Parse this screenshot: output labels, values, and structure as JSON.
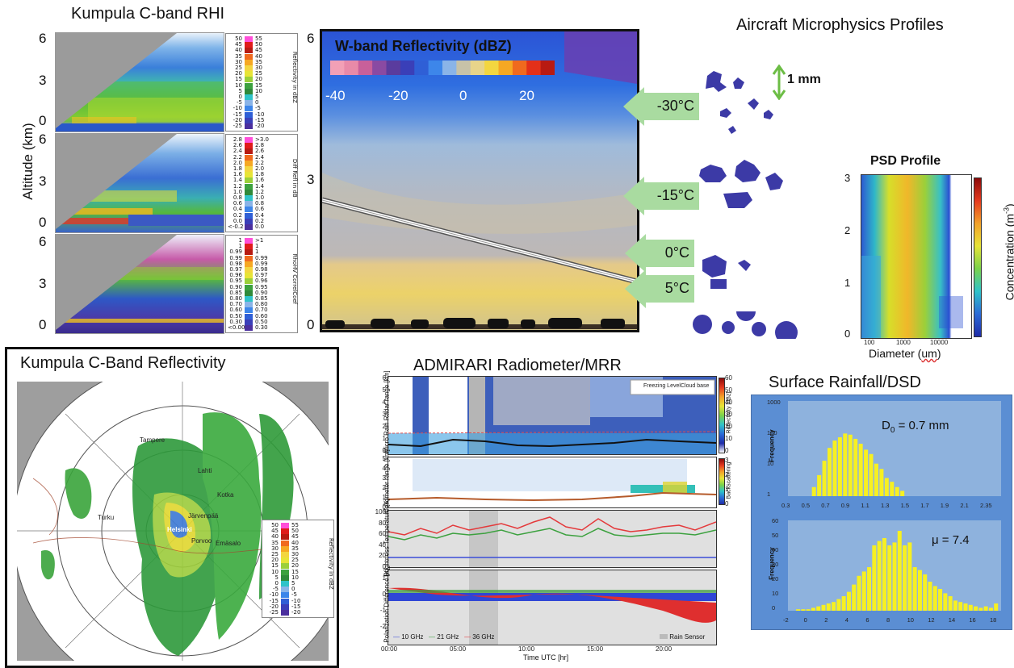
{
  "rhi": {
    "title": "Kumpula C-band RHI",
    "y_axis_label": "Altitude (km)",
    "left_ticks": [
      "6",
      "3",
      "0"
    ],
    "right_ticks": [
      "6",
      "3",
      "0"
    ],
    "legend1_label": "Reflectivity in dBZ",
    "legend1": [
      [
        "50",
        "55"
      ],
      [
        "45",
        "50"
      ],
      [
        "40",
        "45"
      ],
      [
        "35",
        "40"
      ],
      [
        "30",
        "35"
      ],
      [
        "25",
        "30"
      ],
      [
        "20",
        "25"
      ],
      [
        "15",
        "20"
      ],
      [
        "10",
        "15"
      ],
      [
        "5",
        "10"
      ],
      [
        "0",
        "5"
      ],
      [
        "-5",
        "0"
      ],
      [
        "-10",
        "-5"
      ],
      [
        "-15",
        "-10"
      ],
      [
        "-20",
        "-15"
      ],
      [
        "-25",
        "-20"
      ]
    ],
    "legend2_label": "Diff Refl in dB",
    "legend2": [
      [
        "2.8",
        ">3.0"
      ],
      [
        "2.6",
        "2.8"
      ],
      [
        "2.4",
        "2.6"
      ],
      [
        "2.2",
        "2.4"
      ],
      [
        "2.0",
        "2.2"
      ],
      [
        "1.8",
        "2.0"
      ],
      [
        "1.6",
        "1.8"
      ],
      [
        "1.4",
        "1.6"
      ],
      [
        "1.2",
        "1.4"
      ],
      [
        "1.0",
        "1.2"
      ],
      [
        "0.8",
        "1.0"
      ],
      [
        "0.6",
        "0.8"
      ],
      [
        "0.4",
        "0.6"
      ],
      [
        "0.2",
        "0.4"
      ],
      [
        "0.0",
        "0.2"
      ],
      [
        "<-0.2",
        "0.0"
      ]
    ],
    "legend3_label": "RhoHV CorrelCoef",
    "legend3": [
      [
        "1",
        ">1"
      ],
      [
        "1",
        "1"
      ],
      [
        "0.99",
        "1"
      ],
      [
        "0.99",
        "0.99"
      ],
      [
        "0.98",
        "0.99"
      ],
      [
        "0.97",
        "0.98"
      ],
      [
        "0.96",
        "0.97"
      ],
      [
        "0.95",
        "0.96"
      ],
      [
        "0.90",
        "0.95"
      ],
      [
        "0.85",
        "0.90"
      ],
      [
        "0.80",
        "0.85"
      ],
      [
        "0.70",
        "0.80"
      ],
      [
        "0.60",
        "0.70"
      ],
      [
        "0.50",
        "0.60"
      ],
      [
        "0.30",
        "0.50"
      ],
      [
        "<0.00",
        "0.30"
      ]
    ]
  },
  "wband": {
    "title": "W-band Reflectivity (dBZ)",
    "colorbar_ticks": [
      "-40",
      "-20",
      "0",
      "20"
    ],
    "right_ticks": [
      "6",
      "3",
      "0"
    ],
    "colors": [
      "#f2a0b6",
      "#e88aa8",
      "#c8609a",
      "#8a4aa2",
      "#5a3c9e",
      "#3a3fb8",
      "#2f5fd6",
      "#3d86ea",
      "#8ab4e8",
      "#c7c2a8",
      "#e7d48a",
      "#f3d640",
      "#f6a823",
      "#f06a1e",
      "#e33019",
      "#b81a12"
    ]
  },
  "temperature_arrows": [
    "-30°C",
    "-15°C",
    "0°C",
    "5°C"
  ],
  "microphysics": {
    "title": "Aircraft Microphysics Profiles",
    "scale_label": "1 mm"
  },
  "psd": {
    "title": "PSD Profile",
    "y_ticks": [
      "3",
      "2",
      "1",
      "0"
    ],
    "x_ticks": [
      "100",
      "1000",
      "10000"
    ],
    "x_label_prefix": "Diameter (",
    "x_label_unit": "um",
    "x_label_suffix": ")",
    "cb_label": "Concentration (m",
    "cb_label_exp": "-3",
    "cb_label_end": ")"
  },
  "cband": {
    "title": "Kumpula C-Band Reflectivity",
    "places": [
      "Tampere",
      "Lahti",
      "Turku",
      "Helsinki",
      "Järvenpää",
      "Porvoo",
      "Emäsalo",
      "Kotka"
    ],
    "legend_label": "Reflectivity in dBZ",
    "legend": [
      [
        "50",
        "55"
      ],
      [
        "45",
        "50"
      ],
      [
        "40",
        "45"
      ],
      [
        "35",
        "40"
      ],
      [
        "30",
        "35"
      ],
      [
        "25",
        "30"
      ],
      [
        "20",
        "25"
      ],
      [
        "15",
        "20"
      ],
      [
        "10",
        "15"
      ],
      [
        "5",
        "10"
      ],
      [
        "0",
        "5"
      ],
      [
        "-5",
        "0"
      ],
      [
        "-10",
        "-5"
      ],
      [
        "-15",
        "-10"
      ],
      [
        "-20",
        "-15"
      ],
      [
        "-25",
        "-20"
      ]
    ]
  },
  "admirari": {
    "title": "ADMIRARI Radiometer/MRR",
    "mrr_ylabel": "Micro Rain Radar range [km]",
    "mrr_ticks": [
      "6",
      "5",
      "4",
      "3",
      "2",
      "1",
      "0"
    ],
    "mrr_legend_freezing": "Freezing Level",
    "mrr_legend_cloud": "Cloud base",
    "mrr_cb_ticks": [
      "60",
      "50",
      "40",
      "30",
      "20",
      "10",
      "0"
    ],
    "mrr_cb_label": "Reflectivity [dBz]",
    "ceil_ylabel": "Ceilometer range [km]",
    "ceil_ticks": [
      "5",
      "4",
      "3",
      "2",
      "1",
      "0"
    ],
    "ceil_cb_ticks": [
      "3",
      "2",
      "1",
      "0"
    ],
    "ceil_cb_label": "Backscattering",
    "tb_ylabel": "Brightness Temperature [K]",
    "tb_ticks": [
      "100",
      "80",
      "60",
      "40",
      "20",
      "0"
    ],
    "pd_ylabel": "Polarization Difference [K]",
    "pd_ticks": [
      "1",
      "0",
      "-1",
      "-2"
    ],
    "legend_10": "10 GHz",
    "legend_21": "21 GHz",
    "legend_36": "36 GHz",
    "legend_rain": "Rain Sensor",
    "x_ticks": [
      "00:00",
      "05:00",
      "10:00",
      "15:00",
      "20:00"
    ],
    "x_label": "Time UTC [hr]"
  },
  "rainfall": {
    "title": "Surface Rainfall/DSD",
    "annot_d0_prefix": "D",
    "annot_d0_sub": "0",
    "annot_d0_suffix": " = 0.7 mm",
    "annot_mu": "μ = 7.4",
    "ylabel": "Frequency",
    "top_y_ticks": [
      "1000",
      "100",
      "10",
      "1"
    ],
    "top_x_ticks": [
      "0.3",
      "0.5",
      "0.7",
      "0.9",
      "1.1",
      "1.3",
      "1.5",
      "1.7",
      "1.9",
      "2.1",
      "2.35"
    ],
    "bottom_y_ticks": [
      "60",
      "50",
      "40",
      "30",
      "20",
      "10",
      "0"
    ],
    "bottom_x_ticks": [
      "-2",
      "0",
      "2",
      "4",
      "6",
      "8",
      "10",
      "12",
      "14",
      "16",
      "18"
    ]
  },
  "chart_data": [
    {
      "type": "bar",
      "title": "Surface Rainfall/DSD",
      "subtitle": "D0 = 0.7 mm",
      "xlabel": "",
      "ylabel": "Frequency",
      "yscale": "log",
      "ylim": [
        1,
        1000
      ],
      "xlim": [
        0.3,
        2.35
      ],
      "x": [
        0.55,
        0.6,
        0.65,
        0.7,
        0.75,
        0.8,
        0.85,
        0.9,
        0.95,
        1.0,
        1.05,
        1.1,
        1.15,
        1.2,
        1.25,
        1.3,
        1.35,
        1.4
      ],
      "values": [
        2,
        5,
        15,
        40,
        70,
        90,
        120,
        110,
        80,
        55,
        35,
        25,
        12,
        8,
        4,
        3,
        2,
        1.5
      ]
    },
    {
      "type": "bar",
      "subtitle": "μ = 7.4",
      "xlabel": "",
      "ylabel": "Frequency",
      "ylim": [
        0,
        60
      ],
      "xlim": [
        -2.5,
        18.5
      ],
      "x": [
        -1.5,
        -1,
        -0.5,
        0,
        0.5,
        1,
        1.5,
        2,
        2.5,
        3,
        3.5,
        4,
        4.5,
        5,
        5.5,
        6,
        6.5,
        7,
        7.5,
        8,
        8.5,
        9,
        9.5,
        10,
        10.5,
        11,
        11.5,
        12,
        12.5,
        13,
        13.5,
        14,
        14.5,
        15,
        15.5,
        16,
        16.5,
        17,
        17.5,
        18
      ],
      "values": [
        1,
        1,
        1,
        2,
        3,
        4,
        5,
        6,
        8,
        10,
        13,
        18,
        24,
        27,
        30,
        45,
        48,
        50,
        45,
        47,
        55,
        45,
        47,
        30,
        28,
        25,
        20,
        17,
        15,
        12,
        10,
        7,
        6,
        5,
        4,
        3,
        2,
        3,
        2,
        5
      ]
    }
  ]
}
